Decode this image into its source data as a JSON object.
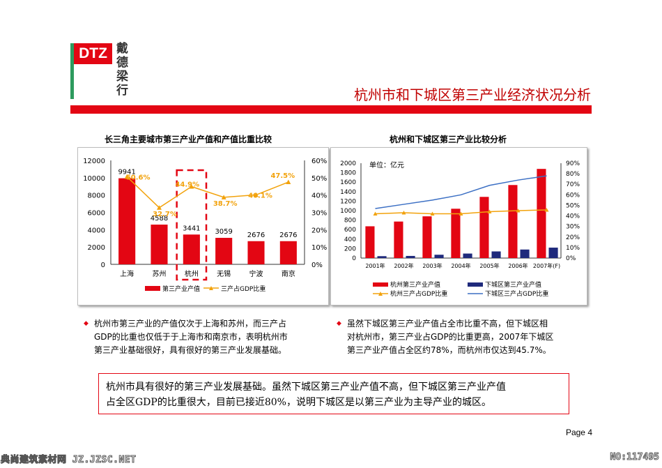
{
  "logo": {
    "brand": "DTZ",
    "chinese": [
      "戴",
      "德",
      "梁",
      "行"
    ]
  },
  "header": {
    "title": "杭州市和下城区第三产业经济状况分析"
  },
  "chart_left_title": "长三角主要城市第三产业产值和产值比重比较",
  "chart_right_title": "杭州和下城区第三产业比较分析",
  "colors": {
    "red": "#e30613",
    "navy": "#1f2a7c",
    "orange": "#f2a20c",
    "blue": "#3b6fc4",
    "green": "#2e9b5e"
  },
  "chart_data": [
    {
      "type": "bar",
      "categories": [
        "上海",
        "苏州",
        "杭州",
        "无锡",
        "宁波",
        "南京"
      ],
      "series": [
        {
          "name": "第三产业产值",
          "values": [
            9941,
            4588,
            3441,
            3059,
            2676,
            2676
          ],
          "axis": "left"
        },
        {
          "name": "三产占GDP比重",
          "type": "line",
          "values": [
            50.6,
            32.7,
            44.9,
            38.7,
            40.1,
            47.5
          ],
          "axis": "right"
        }
      ],
      "bar_labels": [
        "9941",
        "4588",
        "3441",
        "3059",
        "2676",
        "2676"
      ],
      "line_labels": [
        "50.6%",
        "32.7%",
        "44.9%",
        "38.7%",
        "40.1%",
        "47.5%"
      ],
      "ylim": [
        0,
        12000
      ],
      "y_ticks": [
        "0",
        "2000",
        "4000",
        "6000",
        "8000",
        "10000",
        "12000"
      ],
      "y2lim": [
        0,
        60
      ],
      "y2_ticks": [
        "0%",
        "10%",
        "20%",
        "30%",
        "40%",
        "50%",
        "60%"
      ],
      "highlight_category": "杭州",
      "legend_placement": "bottom"
    },
    {
      "type": "bar",
      "unit_label": "单位：亿元",
      "categories": [
        "2001年",
        "2002年",
        "2003年",
        "2004年",
        "2005年",
        "2006年",
        "2007年(F)"
      ],
      "series": [
        {
          "name": "杭州第三产业产值",
          "values": [
            670,
            770,
            880,
            1040,
            1290,
            1540,
            1880
          ],
          "axis": "left"
        },
        {
          "name": "下城区第三产业产值",
          "values": [
            40,
            45,
            70,
            95,
            140,
            180,
            220
          ],
          "axis": "left"
        },
        {
          "name": "杭州三产占GDP比重",
          "type": "line",
          "values": [
            42,
            43,
            42,
            42,
            44,
            45,
            45.7
          ],
          "axis": "right"
        },
        {
          "name": "下城区三产占GDP比重",
          "type": "line",
          "values": [
            47,
            51,
            55,
            60,
            69,
            74,
            78
          ],
          "axis": "right"
        }
      ],
      "ylim": [
        0,
        2000
      ],
      "y_ticks": [
        "0",
        "200",
        "400",
        "600",
        "800",
        "1000",
        "1200",
        "1400",
        "1600",
        "1800",
        "2000"
      ],
      "y2lim": [
        0,
        90
      ],
      "y2_ticks": [
        "0%",
        "10%",
        "20%",
        "30%",
        "40%",
        "50%",
        "60%",
        "70%",
        "80%",
        "90%"
      ],
      "legend_placement": "bottom"
    }
  ],
  "bullets": [
    {
      "lines": [
        "杭州市第三产业的产值仅次于上海和苏州，而三产占",
        "GDP的比重也仅低于于上海市和南京市，表明杭州市",
        "第三产业基础很好，具有很好的第三产业发展基础。"
      ]
    },
    {
      "lines": [
        "虽然下城区第三产业产值占全市比重不高，但下城区相",
        "对杭州市，第三产业占GDP的比重更高，2007年下城区",
        "第三产业产值占全区约78%，而杭州市仅达到45.7%。"
      ]
    }
  ],
  "summary": {
    "lines": [
      "杭州市具有很好的第三产业发展基础。虽然下城区第三产业产值不高，但下城区第三产业产值",
      "占全区GDP的比重很大，目前已接近80%，说明下城区是以第三产业为主导产业的城区。"
    ]
  },
  "page": {
    "label": "Page 4"
  },
  "footer": {
    "left": "典尚建筑素材网 JZ.JZSC.NET",
    "right": "NO:117495"
  }
}
